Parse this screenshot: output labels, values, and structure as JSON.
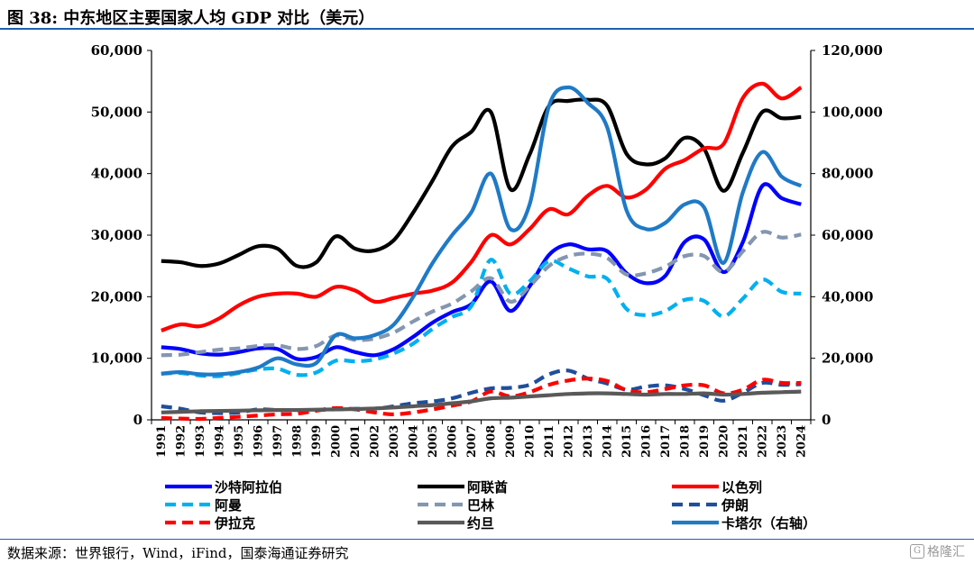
{
  "header": {
    "title": "图 38:  中东地区主要国家人均 GDP 对比（美元）"
  },
  "footer": {
    "source": "数据来源：世界银行，Wind，iFind，国泰海通证券研究",
    "watermark": "格隆汇"
  },
  "chart_data": {
    "type": "line",
    "x": [
      "1991",
      "1992",
      "1993",
      "1994",
      "1995",
      "1996",
      "1997",
      "1998",
      "1999",
      "2000",
      "2001",
      "2002",
      "2003",
      "2004",
      "2005",
      "2006",
      "2007",
      "2008",
      "2009",
      "2010",
      "2011",
      "2012",
      "2013",
      "2014",
      "2015",
      "2016",
      "2017",
      "2018",
      "2019",
      "2020",
      "2021",
      "2022",
      "2023",
      "2024"
    ],
    "ylim": [
      0,
      60000
    ],
    "y2lim": [
      0,
      120000
    ],
    "y_ticks": [
      "0",
      "10,000",
      "20,000",
      "30,000",
      "40,000",
      "50,000",
      "60,000"
    ],
    "y2_ticks": [
      "0",
      "20,000",
      "40,000",
      "60,000",
      "80,000",
      "100,000",
      "120,000"
    ],
    "grid": false,
    "legend_position": "bottom",
    "series": [
      {
        "name": "沙特阿拉伯",
        "color": "#0000ff",
        "dash": "solid",
        "axis": "left",
        "values": [
          11800,
          11500,
          10800,
          10600,
          11000,
          11600,
          11500,
          9900,
          10200,
          11800,
          11000,
          10500,
          11500,
          13500,
          15800,
          17500,
          18800,
          22500,
          17700,
          21700,
          26800,
          28500,
          27700,
          27400,
          23800,
          22200,
          23400,
          28900,
          29300,
          24000,
          28900,
          38000,
          36000,
          35000
        ]
      },
      {
        "name": "阿联酋",
        "color": "#000000",
        "dash": "solid",
        "axis": "left",
        "values": [
          25800,
          25600,
          25000,
          25400,
          26800,
          28200,
          27800,
          25000,
          25600,
          29800,
          27800,
          27500,
          29200,
          33700,
          38900,
          44400,
          46800,
          50000,
          37500,
          43100,
          51000,
          51800,
          52000,
          51000,
          43200,
          41500,
          42500,
          45800,
          44000,
          37200,
          43400,
          50000,
          49000,
          49200
        ]
      },
      {
        "name": "以色列",
        "color": "#ff0000",
        "dash": "solid",
        "axis": "left",
        "values": [
          14500,
          15500,
          15200,
          16500,
          18600,
          20000,
          20500,
          20500,
          20000,
          21600,
          21000,
          19200,
          19800,
          20500,
          21000,
          22300,
          25700,
          30000,
          28500,
          31000,
          34200,
          33400,
          36400,
          38000,
          36100,
          37400,
          40800,
          42200,
          44100,
          44800,
          52300,
          54600,
          52200,
          54000
        ]
      },
      {
        "name": "阿曼",
        "color": "#00b0f0",
        "dash": "dash",
        "axis": "left",
        "values": [
          7500,
          7600,
          7200,
          7100,
          7600,
          8200,
          8300,
          7300,
          7700,
          9600,
          9500,
          9800,
          10800,
          12400,
          14800,
          16700,
          18500,
          26000,
          20500,
          22500,
          25800,
          24600,
          23300,
          22900,
          18000,
          17000,
          17700,
          19500,
          19300,
          16800,
          19700,
          22800,
          20800,
          20500
        ]
      },
      {
        "name": "巴林",
        "color": "#8496b0",
        "dash": "dash",
        "axis": "left",
        "values": [
          10500,
          10600,
          11000,
          11400,
          11600,
          12000,
          12100,
          11500,
          12000,
          13700,
          13000,
          13200,
          14200,
          16000,
          17600,
          18900,
          20900,
          23000,
          19200,
          21700,
          25000,
          26600,
          27000,
          26300,
          23600,
          23800,
          24900,
          26600,
          26600,
          24000,
          27400,
          30500,
          29600,
          30100
        ]
      },
      {
        "name": "伊朗",
        "color": "#1f4e9c",
        "dash": "dash",
        "axis": "left",
        "values": [
          2200,
          1800,
          1200,
          1100,
          1200,
          1700,
          1600,
          1600,
          1600,
          1700,
          1800,
          1800,
          2200,
          2700,
          3000,
          3500,
          4400,
          5100,
          5200,
          5700,
          7400,
          8000,
          6700,
          5900,
          4900,
          5400,
          5600,
          5000,
          4000,
          3100,
          4400,
          6000,
          5700,
          5800
        ]
      },
      {
        "name": "伊拉克",
        "color": "#ff0000",
        "dash": "dash",
        "axis": "left",
        "values": [
          300,
          200,
          150,
          300,
          500,
          700,
          900,
          1000,
          1500,
          1900,
          1700,
          1200,
          900,
          1200,
          1700,
          2300,
          3000,
          4600,
          3800,
          4500,
          5700,
          6400,
          6700,
          6300,
          4800,
          4500,
          5000,
          5600,
          5600,
          4300,
          4900,
          6500,
          6000,
          6000
        ]
      },
      {
        "name": "约旦",
        "color": "#595959",
        "dash": "solid",
        "axis": "left",
        "values": [
          1200,
          1300,
          1400,
          1450,
          1500,
          1550,
          1600,
          1600,
          1650,
          1700,
          1750,
          1850,
          2000,
          2200,
          2400,
          2700,
          3000,
          3500,
          3600,
          3800,
          4000,
          4200,
          4300,
          4300,
          4200,
          4100,
          4200,
          4200,
          4300,
          4100,
          4200,
          4400,
          4500,
          4600
        ]
      },
      {
        "name": "卡塔尔（右轴）",
        "color": "#1f7ac6",
        "dash": "solid",
        "axis": "right",
        "values": [
          15000,
          15500,
          14800,
          14800,
          15500,
          17000,
          20000,
          18000,
          18500,
          27500,
          26500,
          27500,
          31000,
          40000,
          51000,
          60000,
          67500,
          80000,
          62000,
          70000,
          102000,
          108000,
          103000,
          95000,
          68000,
          62000,
          64000,
          70000,
          69000,
          51000,
          74000,
          87000,
          79000,
          76000
        ]
      }
    ]
  }
}
